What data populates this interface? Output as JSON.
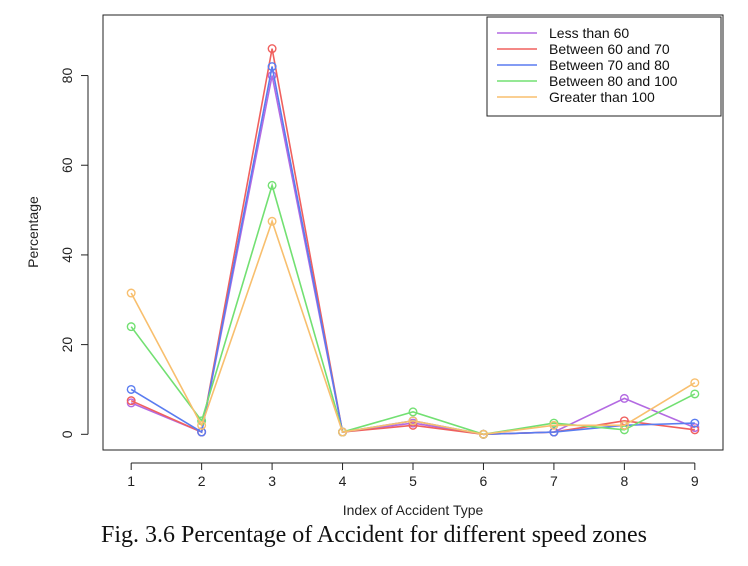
{
  "caption": "Fig. 3.6 Percentage of Accident for different speed zones",
  "chart_data": {
    "type": "line",
    "title": "",
    "xlabel": "Index of Accident Type",
    "ylabel": "Percentage",
    "x": [
      1,
      2,
      3,
      4,
      5,
      6,
      7,
      8,
      9
    ],
    "x_tick_labels": [
      "1",
      "2",
      "3",
      "4",
      "5",
      "6",
      "7",
      "8",
      "9"
    ],
    "y_ticks": [
      0,
      20,
      40,
      60,
      80
    ],
    "y_tick_labels": [
      "0",
      "20",
      "40",
      "60",
      "80"
    ],
    "xlim": [
      0.6,
      9.4
    ],
    "ylim": [
      -3.5,
      93.5
    ],
    "markers": "open circles",
    "grid": false,
    "legend_position": "top-right",
    "series": [
      {
        "name": "Less than 60",
        "color": "#b36ae2",
        "values": [
          7,
          0.5,
          80,
          0.5,
          2.5,
          0,
          0.5,
          8,
          1.5
        ]
      },
      {
        "name": "Between 60 and 70",
        "color": "#f0605e",
        "values": [
          7.5,
          0.5,
          86,
          0.5,
          2,
          0,
          0.5,
          3,
          1
        ]
      },
      {
        "name": "Between 70 and 80",
        "color": "#5a7cf0",
        "values": [
          10,
          0.5,
          82,
          0.5,
          3,
          0,
          0.5,
          2,
          2.5
        ]
      },
      {
        "name": "Between 80 and 100",
        "color": "#72e072",
        "values": [
          24,
          3,
          55.5,
          0.5,
          5,
          0,
          2.5,
          1,
          9
        ]
      },
      {
        "name": "Greater than 100",
        "color": "#f8bf6e",
        "values": [
          31.5,
          2,
          47.5,
          0.5,
          3,
          0,
          2,
          2,
          11.5
        ]
      }
    ]
  }
}
